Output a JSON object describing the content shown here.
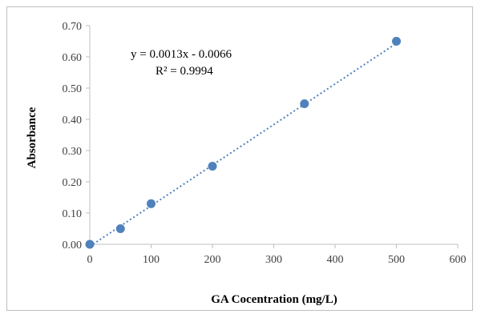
{
  "chart_data": {
    "type": "scatter",
    "xlabel": "GA Cocentration (mg/L)",
    "ylabel": "Absorbance",
    "xlim": [
      0,
      600
    ],
    "ylim": [
      0,
      0.7
    ],
    "x_ticks": [
      "0",
      "100",
      "200",
      "300",
      "400",
      "500",
      "600"
    ],
    "y_ticks": [
      "0.00",
      "0.10",
      "0.20",
      "0.30",
      "0.40",
      "0.50",
      "0.60",
      "0.70"
    ],
    "points": [
      {
        "x": 0,
        "y": 0.0
      },
      {
        "x": 50,
        "y": 0.05
      },
      {
        "x": 100,
        "y": 0.13
      },
      {
        "x": 200,
        "y": 0.25
      },
      {
        "x": 350,
        "y": 0.45
      },
      {
        "x": 500,
        "y": 0.65
      }
    ],
    "trendline": {
      "type": "linear",
      "slope": 0.0013,
      "intercept": -0.0066,
      "style": "dotted"
    },
    "annotations": {
      "equation": "y = 0.0013x - 0.0066",
      "r_squared": "R² = 0.9994"
    },
    "grid": false,
    "legend": "none",
    "colors": {
      "marker": "#4f81bd",
      "trendline": "#4f81bd",
      "axis": "#bfbfbf"
    }
  }
}
